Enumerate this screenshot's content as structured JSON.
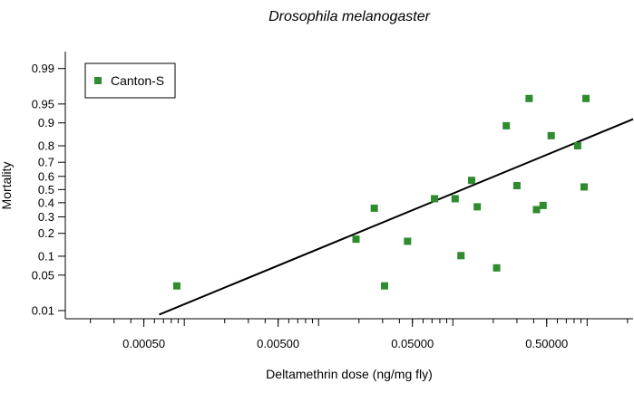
{
  "chart_data": {
    "type": "scatter",
    "title": "Drosophila melanogaster",
    "xlabel": "Deltamethrin dose (ng/mg fly)",
    "ylabel": "Mortality",
    "x_scale": "log10",
    "y_scale": "probit",
    "xlim": [
      0.00013,
      2.2
    ],
    "ylim": [
      0.0065,
      0.996
    ],
    "x_ticks": [
      0.0005,
      0.005,
      0.05,
      0.5
    ],
    "x_tick_labels": [
      "0.00050",
      "0.00500",
      "0.05000",
      "0.50000"
    ],
    "y_ticks": [
      0.01,
      0.05,
      0.1,
      0.2,
      0.3,
      0.4,
      0.5,
      0.6,
      0.7,
      0.8,
      0.9,
      0.95,
      0.99
    ],
    "y_tick_labels": [
      "0.01",
      "0.05",
      "0.1",
      "0.2",
      "0.3",
      "0.4",
      "0.5",
      "0.6",
      "0.7",
      "0.8",
      "0.9",
      "0.95",
      "0.99"
    ],
    "legend": {
      "position": "top-left",
      "entries": [
        {
          "label": "Canton-S",
          "marker": "square",
          "color": "#2e8b2e"
        }
      ]
    },
    "series": [
      {
        "name": "Canton-S",
        "color": "#2e8b2e",
        "points": [
          {
            "x": 0.00088,
            "y": 0.032
          },
          {
            "x": 0.019,
            "y": 0.17
          },
          {
            "x": 0.026,
            "y": 0.36
          },
          {
            "x": 0.031,
            "y": 0.032
          },
          {
            "x": 0.046,
            "y": 0.16
          },
          {
            "x": 0.073,
            "y": 0.43
          },
          {
            "x": 0.104,
            "y": 0.43
          },
          {
            "x": 0.115,
            "y": 0.102
          },
          {
            "x": 0.138,
            "y": 0.57
          },
          {
            "x": 0.152,
            "y": 0.37
          },
          {
            "x": 0.212,
            "y": 0.066
          },
          {
            "x": 0.25,
            "y": 0.89
          },
          {
            "x": 0.3,
            "y": 0.53
          },
          {
            "x": 0.37,
            "y": 0.96
          },
          {
            "x": 0.42,
            "y": 0.35
          },
          {
            "x": 0.47,
            "y": 0.38
          },
          {
            "x": 0.54,
            "y": 0.85
          },
          {
            "x": 0.85,
            "y": 0.8
          },
          {
            "x": 0.95,
            "y": 0.52
          },
          {
            "x": 0.98,
            "y": 0.96
          }
        ]
      }
    ],
    "fit_line": {
      "x": [
        0.00065,
        2.2
      ],
      "y": [
        0.0081,
        0.912
      ],
      "color": "#000000"
    }
  }
}
